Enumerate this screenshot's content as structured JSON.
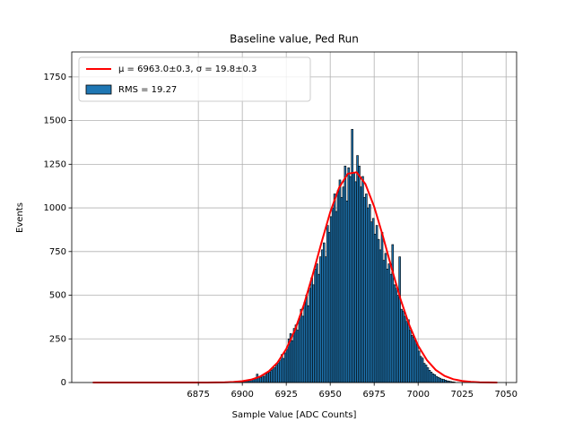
{
  "chart_data": {
    "type": "histogram",
    "title": "Baseline value, Ped Run",
    "x_label": "Sample Value [ADC Counts]",
    "y_label": "Events",
    "name": "RMS = 19.27",
    "color": "#1f77b4",
    "edgecolor": "#000000",
    "bins": [
      6895,
      6896,
      6897,
      6898,
      6899,
      6900,
      6901,
      6902,
      6903,
      6904,
      6905,
      6906,
      6907,
      6908,
      6909,
      6910,
      6911,
      6912,
      6913,
      6914,
      6915,
      6916,
      6917,
      6918,
      6919,
      6920,
      6921,
      6922,
      6923,
      6924,
      6925,
      6926,
      6927,
      6928,
      6929,
      6930,
      6931,
      6932,
      6933,
      6934,
      6935,
      6936,
      6937,
      6938,
      6939,
      6940,
      6941,
      6942,
      6943,
      6944,
      6945,
      6946,
      6947,
      6948,
      6949,
      6950,
      6951,
      6952,
      6953,
      6954,
      6955,
      6956,
      6957,
      6958,
      6959,
      6960,
      6961,
      6962,
      6963,
      6964,
      6965,
      6966,
      6967,
      6968,
      6969,
      6970,
      6971,
      6972,
      6973,
      6974,
      6975,
      6976,
      6977,
      6978,
      6979,
      6980,
      6981,
      6982,
      6983,
      6984,
      6985,
      6986,
      6987,
      6988,
      6989,
      6990,
      6991,
      6992,
      6993,
      6994,
      6995,
      6996,
      6997,
      6998,
      6999,
      7000,
      7001,
      7002,
      7003,
      7004,
      7005,
      7006,
      7007,
      7008,
      7009,
      7010,
      7011,
      7012,
      7013,
      7014,
      7015,
      7016,
      7017,
      7018,
      7019,
      7020,
      7021
    ],
    "counts": [
      2,
      4,
      6,
      3,
      8,
      9,
      7,
      12,
      10,
      16,
      18,
      21,
      25,
      48,
      31,
      30,
      40,
      36,
      48,
      55,
      60,
      70,
      78,
      86,
      100,
      112,
      125,
      160,
      138,
      170,
      190,
      250,
      280,
      240,
      310,
      330,
      300,
      360,
      420,
      380,
      460,
      500,
      440,
      540,
      600,
      560,
      650,
      680,
      620,
      720,
      760,
      800,
      720,
      900,
      860,
      950,
      1000,
      1080,
      980,
      1100,
      1160,
      1060,
      1120,
      1240,
      1040,
      1230,
      1180,
      1450,
      1200,
      1150,
      1300,
      1240,
      1120,
      1180,
      1060,
      1080,
      1000,
      1020,
      920,
      940,
      850,
      900,
      820,
      760,
      860,
      700,
      740,
      650,
      680,
      620,
      790,
      560,
      540,
      500,
      720,
      420,
      410,
      380,
      350,
      360,
      300,
      270,
      260,
      240,
      220,
      180,
      150,
      140,
      110,
      100,
      85,
      70,
      60,
      50,
      45,
      35,
      30,
      25,
      20,
      18,
      14,
      10,
      8,
      6,
      4,
      3
    ],
    "fit": {
      "type": "line",
      "name": "μ = 6963.0±0.3, σ = 19.8±0.3",
      "color": "#ff0000",
      "x": [
        6815,
        6820,
        6825,
        6830,
        6835,
        6840,
        6845,
        6850,
        6855,
        6860,
        6865,
        6870,
        6875,
        6880,
        6885,
        6890,
        6895,
        6900,
        6905,
        6910,
        6915,
        6920,
        6925,
        6930,
        6935,
        6940,
        6945,
        6950,
        6955,
        6960,
        6965,
        6970,
        6975,
        6980,
        6985,
        6990,
        6995,
        7000,
        7005,
        7010,
        7015,
        7020,
        7025,
        7030,
        7035,
        7040,
        7045
      ],
      "values": [
        0,
        0,
        0,
        0,
        0,
        0,
        0,
        0,
        0,
        0,
        0,
        0,
        0,
        0,
        0.5,
        1.3,
        3.3,
        7.7,
        16.6,
        33.6,
        64,
        114,
        192,
        302,
        445,
        616,
        800,
        976,
        1115,
        1196,
        1204,
        1137,
        1007,
        837,
        652,
        477,
        328,
        211,
        128,
        72,
        38,
        19,
        9,
        4,
        1.6,
        0.6,
        0.2
      ]
    },
    "xlim": [
      6803,
      7056
    ],
    "ylim": [
      0,
      1893
    ],
    "xticks": [
      6875,
      6900,
      6925,
      6950,
      6975,
      7000,
      7025,
      7050
    ],
    "yticks": [
      0,
      250,
      500,
      750,
      1000,
      1250,
      1500,
      1750
    ],
    "grid": true,
    "legend": "upper left"
  }
}
